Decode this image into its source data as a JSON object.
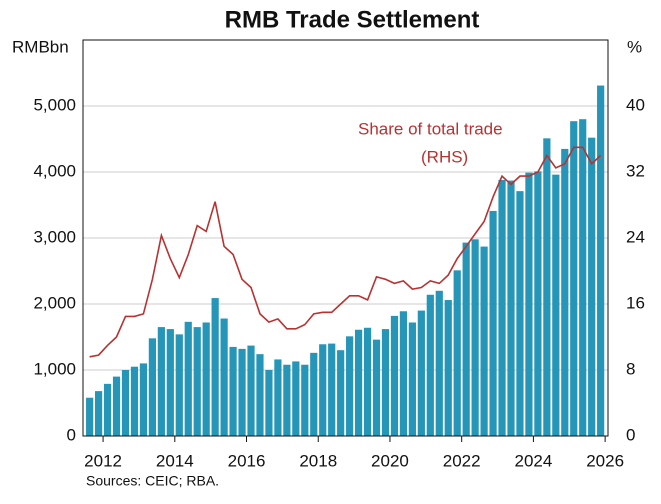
{
  "chart_data": {
    "type": "bar-line",
    "title": "RMB Trade Settlement",
    "y_label": "RMBbn",
    "y2_label": "%",
    "source": "Sources:   CEIC; RBA.",
    "annotations": [
      "Share of total trade",
      "(RHS)"
    ],
    "x": [
      2011.625,
      2011.875,
      2012.125,
      2012.375,
      2012.625,
      2012.875,
      2013.125,
      2013.375,
      2013.625,
      2013.875,
      2014.125,
      2014.375,
      2014.625,
      2014.875,
      2015.125,
      2015.375,
      2015.625,
      2015.875,
      2016.125,
      2016.375,
      2016.625,
      2016.875,
      2017.125,
      2017.375,
      2017.625,
      2017.875,
      2018.125,
      2018.375,
      2018.625,
      2018.875,
      2019.125,
      2019.375,
      2019.625,
      2019.875,
      2020.125,
      2020.375,
      2020.625,
      2020.875,
      2021.125,
      2021.375,
      2021.625,
      2021.875,
      2022.125,
      2022.375,
      2022.625,
      2022.875,
      2023.125,
      2023.375,
      2023.625,
      2023.875,
      2024.125,
      2024.375,
      2024.625,
      2024.875,
      2025.125,
      2025.375,
      2025.625,
      2025.875
    ],
    "series": [
      {
        "name": "RMB trade settlement",
        "color": "#2596b8",
        "type": "bar",
        "values": [
          580,
          680,
          790,
          900,
          1000,
          1050,
          1100,
          1480,
          1650,
          1620,
          1540,
          1730,
          1650,
          1720,
          2090,
          1780,
          1350,
          1320,
          1370,
          1240,
          1000,
          1160,
          1080,
          1130,
          1080,
          1260,
          1390,
          1400,
          1300,
          1510,
          1610,
          1640,
          1460,
          1620,
          1820,
          1890,
          1720,
          1900,
          2140,
          2200,
          2060,
          2510,
          2930,
          2980,
          2870,
          3410,
          3880,
          3870,
          3710,
          3990,
          4010,
          4510,
          3960,
          4350,
          4770,
          4800,
          4520,
          5310
        ]
      },
      {
        "name": "Share of total trade",
        "color": "#b83232",
        "type": "line",
        "axis": "y2",
        "values": [
          9.6,
          9.8,
          11,
          12,
          14.5,
          14.5,
          14.8,
          19,
          24.3,
          21.5,
          19.2,
          22,
          25.5,
          24.8,
          28.4,
          23,
          22,
          19,
          18,
          14.8,
          13.8,
          14.2,
          13,
          13,
          13.5,
          14.8,
          15,
          15,
          16,
          17,
          17,
          16.5,
          19.3,
          19,
          18.5,
          18.8,
          17.8,
          18,
          18.8,
          18.5,
          19.5,
          21.5,
          23,
          24.5,
          26,
          29,
          31.5,
          30.5,
          31.5,
          31.5,
          32,
          34,
          32.5,
          33,
          35,
          35,
          33,
          34
        ]
      }
    ],
    "xlim": [
      2011.44,
      2026.08
    ],
    "xticks": [
      2012,
      2014,
      2016,
      2018,
      2020,
      2022,
      2024,
      2026
    ],
    "ylim": [
      0,
      6000
    ],
    "yticks": [
      0,
      {
        "value": 1000,
        "label": "1,000"
      },
      {
        "value": 2000,
        "label": "2,000"
      },
      {
        "value": 3000,
        "label": "3,000"
      },
      {
        "value": 4000,
        "label": "4,000"
      },
      {
        "value": 5000,
        "label": "5,000"
      }
    ],
    "y2lim": [
      0,
      48
    ],
    "y2ticks": [
      0,
      8,
      16,
      24,
      32,
      40
    ],
    "grid": true
  }
}
